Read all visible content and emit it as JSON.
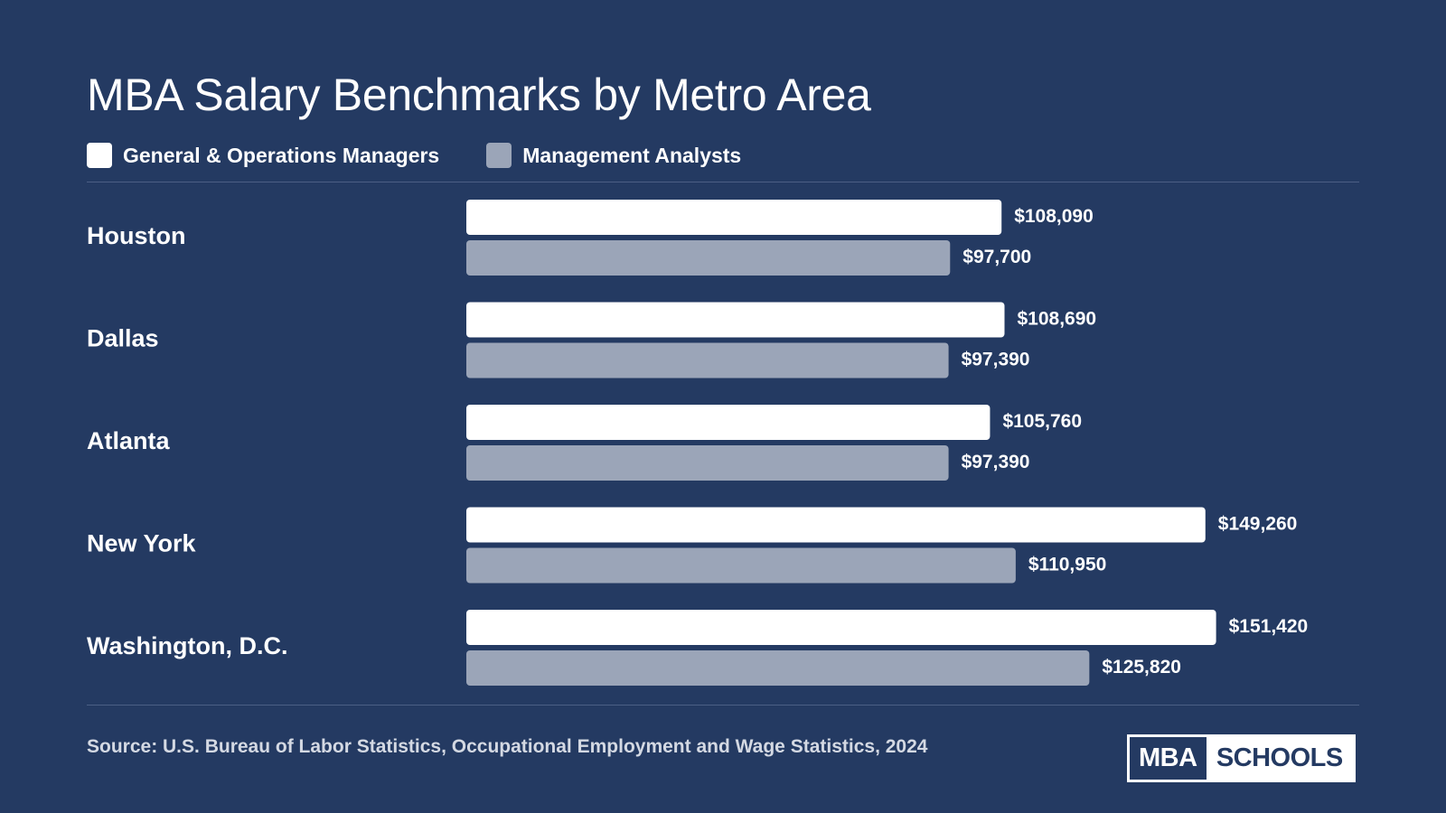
{
  "colors": {
    "background": "#243a62",
    "series_primary": "#ffffff",
    "series_secondary": "#9ba5b8"
  },
  "chart_data": {
    "type": "bar",
    "orientation": "horizontal",
    "title": "MBA Salary Benchmarks by Metro Area",
    "categories": [
      "Houston",
      "Dallas",
      "Atlanta",
      "New York",
      "Washington, D.C."
    ],
    "series": [
      {
        "name": "General & Operations Managers",
        "color": "#ffffff",
        "values": [
          108090,
          108690,
          105760,
          149260,
          151420
        ],
        "labels": [
          "$108,090",
          "$108,690",
          "$105,760",
          "$149,260",
          "$151,420"
        ]
      },
      {
        "name": "Management Analysts",
        "color": "#9ba5b8",
        "values": [
          97700,
          97390,
          97390,
          110950,
          125820
        ],
        "labels": [
          "$97,700",
          "$97,390",
          "$97,390",
          "$110,950",
          "$125,820"
        ]
      }
    ],
    "xlim": [
      0,
      160000
    ],
    "grid": false,
    "legend_position": "top-left"
  },
  "footer": {
    "source": "Source: U.S. Bureau of Labor Statistics, Occupational Employment and Wage Statistics, 2024"
  },
  "logo": {
    "part1": "MBA",
    "part2": "SCHOOLS"
  }
}
